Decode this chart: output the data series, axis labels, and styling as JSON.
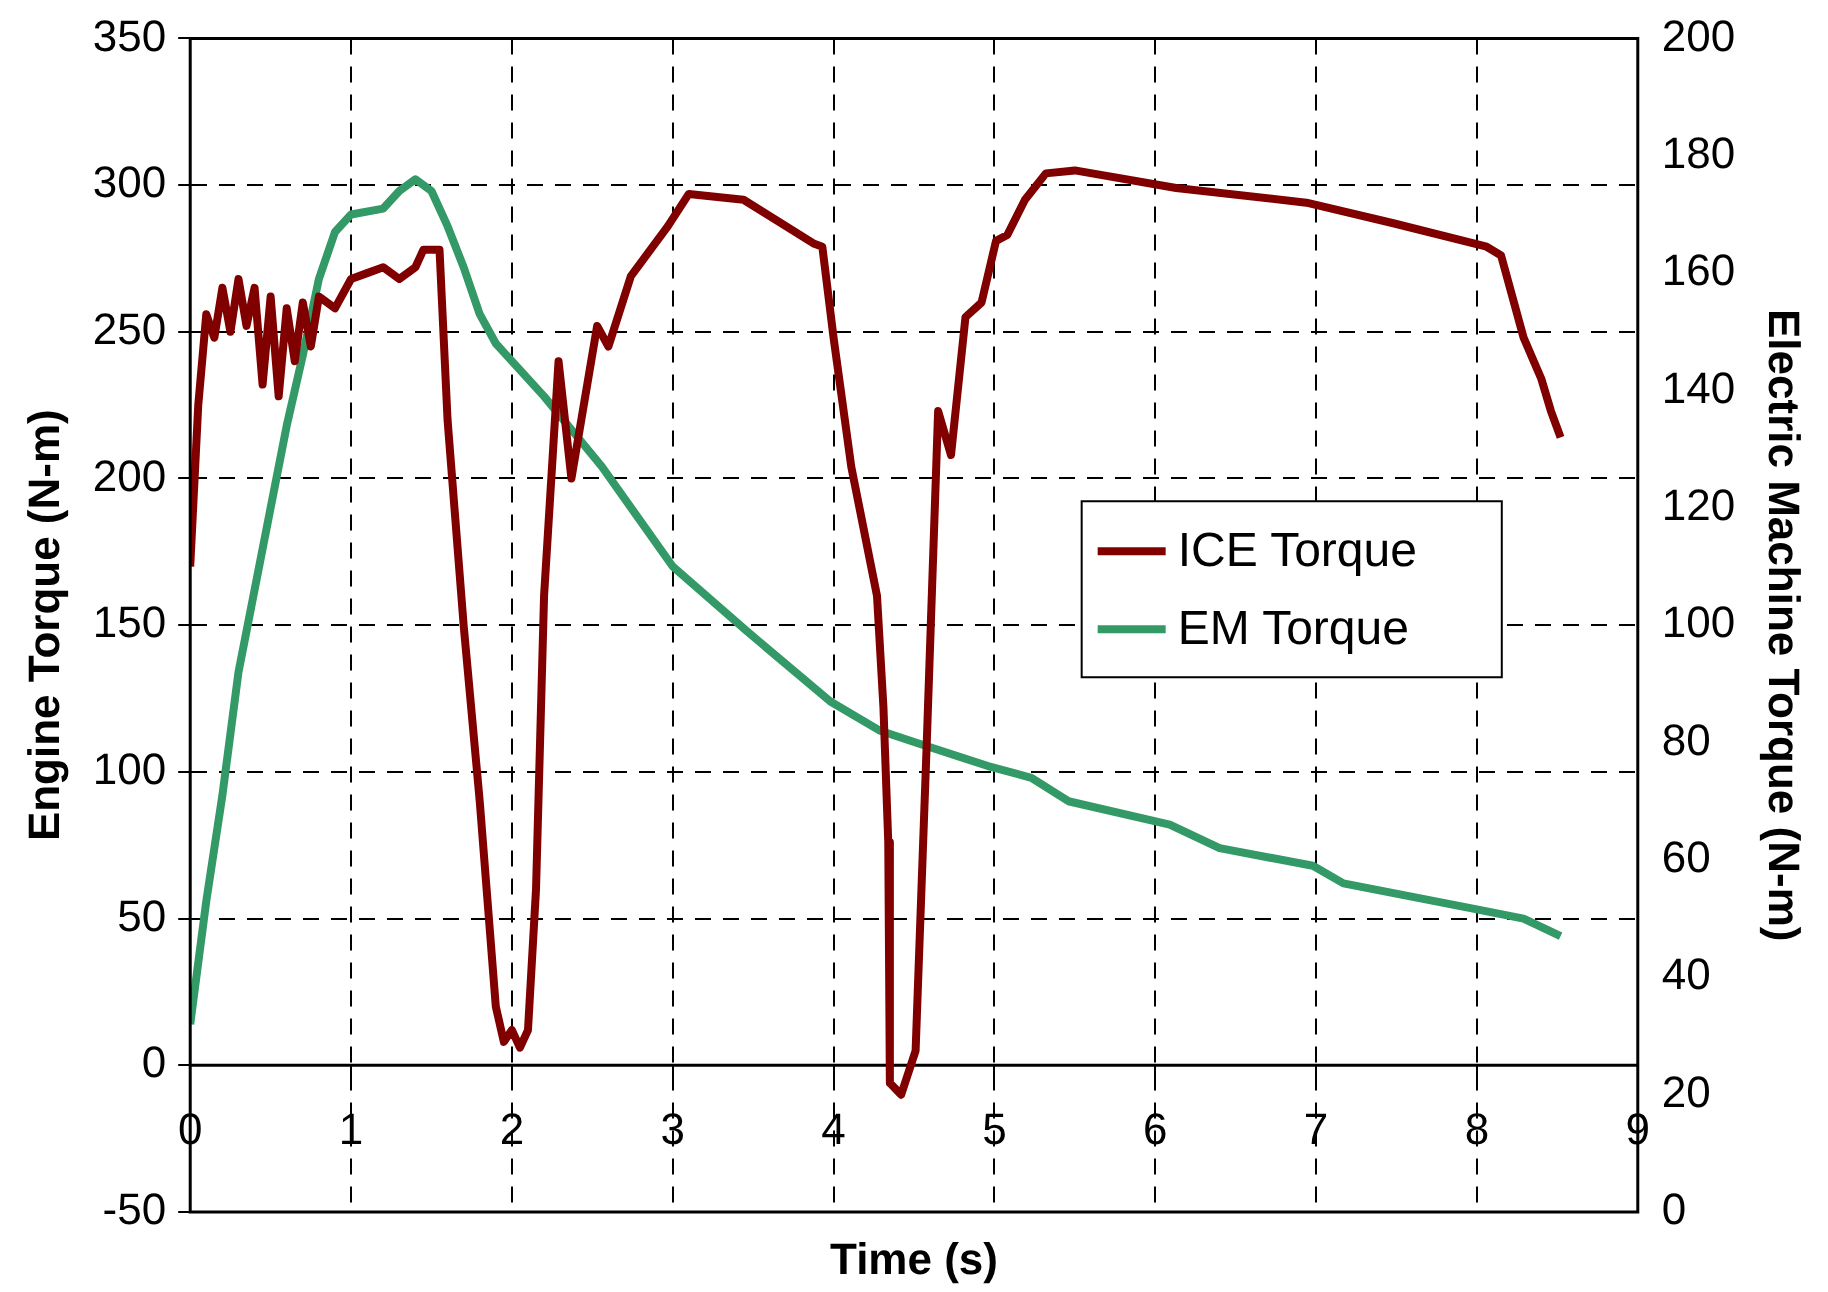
{
  "chart_data": {
    "type": "line",
    "xlabel": "Time (s)",
    "ylabel": "Engine Torque (N-m)",
    "y2label": "Electric Machine Torque (N-m)",
    "xlim": [
      0,
      9
    ],
    "xticks": [
      0,
      1,
      2,
      3,
      4,
      5,
      6,
      7,
      8,
      9
    ],
    "ylim": [
      -50,
      350
    ],
    "yticks": [
      -50,
      0,
      50,
      100,
      150,
      200,
      250,
      300,
      350
    ],
    "y2lim": [
      0,
      200
    ],
    "y2ticks": [
      0,
      20,
      40,
      60,
      80,
      100,
      120,
      140,
      160,
      180,
      200
    ],
    "grid": true,
    "legend": "right",
    "marker": "none",
    "line_style": "solid",
    "series": [
      {
        "name": "ICE Torque",
        "color": "#800000",
        "x": [
          0,
          0.05,
          0.1,
          0.15,
          0.2,
          0.25,
          0.3,
          0.35,
          0.4,
          0.45,
          0.5,
          0.55,
          0.6,
          0.65,
          0.7,
          0.75,
          0.8,
          0.9,
          1.0,
          1.1,
          1.2,
          1.3,
          1.4,
          1.45,
          1.55,
          1.6,
          1.7,
          1.8,
          1.9,
          1.95,
          2.0,
          2.05,
          2.1,
          2.15,
          2.2,
          2.29,
          2.37,
          2.53,
          2.6,
          2.74,
          2.97,
          3.1,
          3.44,
          3.88,
          3.93,
          4.0,
          4.11,
          4.27,
          4.31,
          4.34,
          4.35,
          4.42,
          4.51,
          4.58,
          4.65,
          4.73,
          4.82,
          4.92,
          5.01,
          5.08,
          5.19,
          5.32,
          5.5,
          6.13,
          6.94,
          7.48,
          8.06,
          8.15,
          8.29,
          8.4,
          8.46,
          8.52
        ],
        "values": [
          170,
          225,
          256,
          248,
          265,
          250,
          268,
          252,
          265,
          232,
          262,
          228,
          258,
          240,
          260,
          245,
          262,
          258,
          268,
          270,
          272,
          268,
          272,
          278,
          278,
          220,
          150,
          90,
          20,
          8,
          12,
          6,
          12,
          60,
          160,
          240,
          200,
          252,
          245,
          269,
          286,
          297,
          295,
          280,
          279,
          248,
          204,
          160,
          122,
          76,
          -6,
          -10,
          5,
          111,
          223,
          208,
          255,
          260,
          281,
          283,
          295,
          304,
          305,
          299,
          294,
          287,
          279,
          276,
          248,
          234,
          223,
          214
        ]
      },
      {
        "name": "EM Torque",
        "color": "#339966",
        "axis": "y2",
        "x": [
          0,
          0.1,
          0.2,
          0.3,
          0.4,
          0.5,
          0.6,
          0.7,
          0.8,
          0.9,
          1.0,
          1.2,
          1.3,
          1.4,
          1.5,
          1.6,
          1.7,
          1.8,
          1.9,
          2.0,
          2.2,
          2.29,
          2.56,
          3.0,
          3.46,
          3.98,
          4.29,
          4.51,
          4.96,
          5.23,
          5.46,
          6.09,
          6.4,
          6.98,
          7.17,
          7.92,
          8.29,
          8.52
        ],
        "values": [
          32,
          53,
          71,
          92,
          106,
          120,
          134,
          146,
          159,
          167,
          170,
          171,
          174,
          176,
          174,
          168,
          161,
          153,
          148,
          145,
          139,
          136,
          127,
          110,
          99,
          87,
          82,
          80,
          76,
          74,
          70,
          66,
          62,
          59,
          56,
          52,
          50,
          47
        ]
      }
    ]
  }
}
